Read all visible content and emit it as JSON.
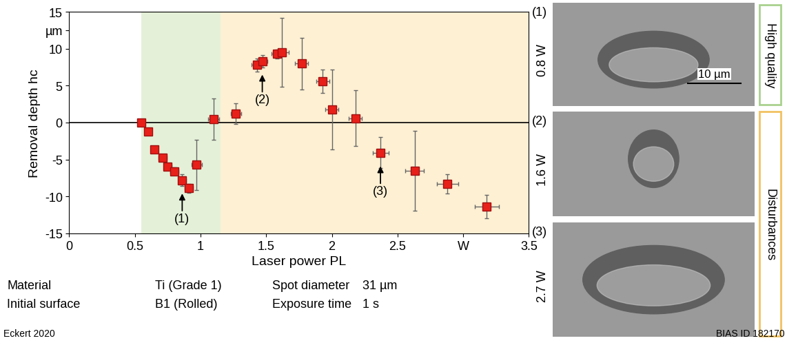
{
  "chart_data": {
    "type": "scatter",
    "x_label": "Laser power PL",
    "y_label": "Removal depth hc",
    "xlim": [
      0,
      3.5
    ],
    "ylim": [
      -15,
      15
    ],
    "xticks": [
      0,
      0.5,
      1,
      1.5,
      2,
      2.5,
      {
        "value": 3,
        "label": "W"
      },
      3.5
    ],
    "yticks": [
      -15,
      -10,
      -5,
      0,
      5,
      10,
      {
        "value": 12.5,
        "label": "µm"
      },
      15
    ],
    "x": [
      0.55,
      0.6,
      0.65,
      0.71,
      0.75,
      0.8,
      0.86,
      0.91,
      0.97,
      1.1,
      1.27,
      1.43,
      1.47,
      1.58,
      1.62,
      1.77,
      1.93,
      2.0,
      2.18,
      2.37,
      2.63,
      2.88,
      3.18
    ],
    "values": [
      0,
      -1.2,
      -3.6,
      -4.8,
      -6.0,
      -6.6,
      -7.8,
      -8.9,
      -5.7,
      0.5,
      1.2,
      7.8,
      8.3,
      9.3,
      9.5,
      8.0,
      5.6,
      1.8,
      0.6,
      -4.1,
      -6.5,
      -8.3,
      -11.4
    ],
    "x_error": [
      0.02,
      0.02,
      0.02,
      0.03,
      0.03,
      0.03,
      0.03,
      0.03,
      0.04,
      0.04,
      0.04,
      0.04,
      0.04,
      0.04,
      0.05,
      0.05,
      0.05,
      0.05,
      0.05,
      0.06,
      0.07,
      0.08,
      0.09
    ],
    "y_error": [
      0.3,
      0.3,
      0.4,
      0.4,
      0.4,
      0.5,
      0.8,
      0.6,
      3.4,
      2.8,
      1.4,
      0.9,
      0.8,
      0.6,
      4.7,
      3.5,
      1.6,
      5.4,
      3.8,
      2.1,
      5.4,
      1.3,
      1.6
    ],
    "color": "#e8201a",
    "marker": "square",
    "reference_y": 0,
    "regions": [
      {
        "label": "High quality",
        "xrange": [
          0.55,
          1.15
        ],
        "color": "#e4f1d8",
        "edge_color": "#a9d18e"
      },
      {
        "label": "Disturbances",
        "xrange": [
          1.15,
          3.5
        ],
        "color": "#fdf0d3",
        "edge_color": "#f2c260"
      }
    ],
    "annotations": [
      {
        "text": "(1)",
        "x": 0.86,
        "y": -7.8
      },
      {
        "text": "(2)",
        "x": 1.47,
        "y": 8.3
      },
      {
        "text": "(3)",
        "x": 2.37,
        "y": -4.1
      }
    ]
  },
  "panels": [
    {
      "label": "(1)",
      "power": "0.8 W",
      "region": 0
    },
    {
      "label": "(2)",
      "power": "1.6 W",
      "region": 1
    },
    {
      "label": "(3)",
      "power": "2.7 W",
      "region": 1
    }
  ],
  "scale_bar": "10 µm",
  "info": [
    [
      "Material",
      "Ti (Grade 1)",
      "Spot diameter",
      "31 µm"
    ],
    [
      "Initial surface",
      "B1 (Rolled)",
      "Exposure time",
      "1 s"
    ]
  ],
  "source": "Eckert 2020",
  "id": "BIAS ID 182170"
}
